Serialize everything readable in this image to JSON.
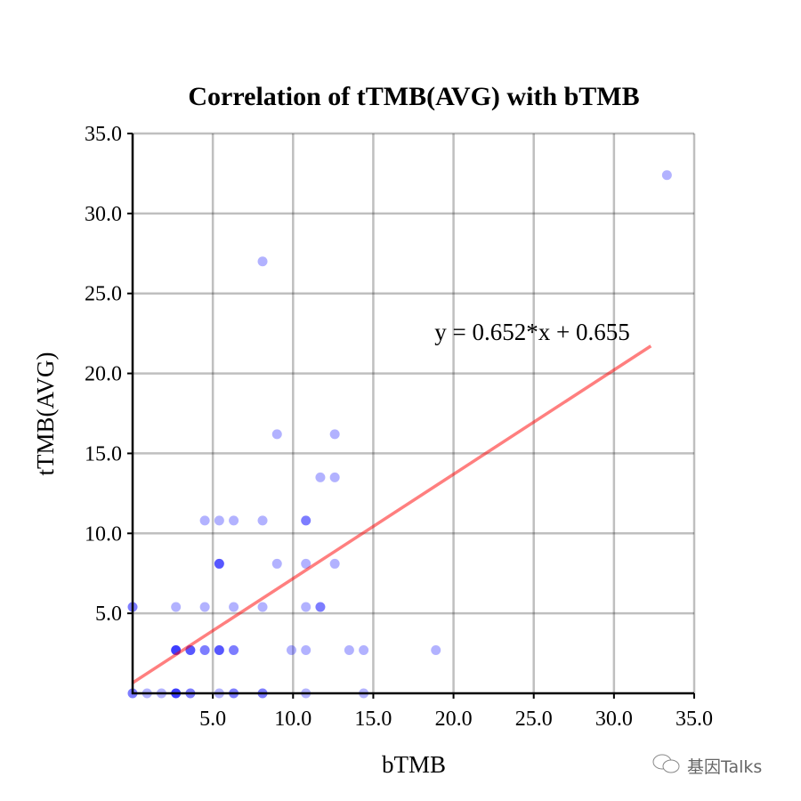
{
  "chart_data": {
    "type": "scatter",
    "title": "Correlation of tTMB(AVG) with bTMB",
    "xlabel": "bTMB",
    "ylabel": "tTMB(AVG)",
    "xlim": [
      0,
      35
    ],
    "ylim": [
      0,
      35
    ],
    "xticks": [
      "5.0",
      "10.0",
      "15.0",
      "20.0",
      "25.0",
      "30.0",
      "35.0"
    ],
    "yticks": [
      "5.0",
      "10.0",
      "15.0",
      "20.0",
      "25.0",
      "30.0",
      "35.0"
    ],
    "grid": true,
    "point_color": "#0000ff",
    "fit_color": "#ff0000",
    "fit": {
      "slope": 0.652,
      "intercept": 0.655,
      "x_range": [
        0,
        32.3
      ],
      "label": "y = 0.652*x + 0.655"
    },
    "points_note": "[x, y, overlap count]",
    "points": [
      [
        0,
        0,
        2
      ],
      [
        0.9,
        0,
        1
      ],
      [
        1.8,
        0,
        1
      ],
      [
        2.7,
        0,
        4
      ],
      [
        3.6,
        0,
        2
      ],
      [
        5.4,
        0,
        1
      ],
      [
        6.3,
        0,
        2
      ],
      [
        8.1,
        0,
        2
      ],
      [
        10.8,
        0,
        1
      ],
      [
        14.4,
        0,
        1
      ],
      [
        2.7,
        2.7,
        4
      ],
      [
        3.6,
        2.7,
        3
      ],
      [
        4.5,
        2.7,
        2
      ],
      [
        5.4,
        2.7,
        3
      ],
      [
        6.3,
        2.7,
        2
      ],
      [
        9.9,
        2.7,
        1
      ],
      [
        10.8,
        2.7,
        1
      ],
      [
        13.5,
        2.7,
        1
      ],
      [
        14.4,
        2.7,
        1
      ],
      [
        18.9,
        2.7,
        1
      ],
      [
        0,
        5.4,
        2
      ],
      [
        2.7,
        5.4,
        1
      ],
      [
        4.5,
        5.4,
        1
      ],
      [
        6.3,
        5.4,
        1
      ],
      [
        8.1,
        5.4,
        1
      ],
      [
        10.8,
        5.4,
        1
      ],
      [
        11.7,
        5.4,
        2
      ],
      [
        5.4,
        8.1,
        3
      ],
      [
        9.0,
        8.1,
        1
      ],
      [
        10.8,
        8.1,
        1
      ],
      [
        12.6,
        8.1,
        1
      ],
      [
        4.5,
        10.8,
        1
      ],
      [
        5.4,
        10.8,
        1
      ],
      [
        6.3,
        10.8,
        1
      ],
      [
        8.1,
        10.8,
        1
      ],
      [
        10.8,
        10.8,
        2
      ],
      [
        11.7,
        13.5,
        1
      ],
      [
        12.6,
        13.5,
        1
      ],
      [
        9.0,
        16.2,
        1
      ],
      [
        12.6,
        16.2,
        1
      ],
      [
        8.1,
        27.0,
        1
      ],
      [
        33.3,
        32.4,
        1
      ]
    ]
  },
  "watermark": "基因Talks"
}
